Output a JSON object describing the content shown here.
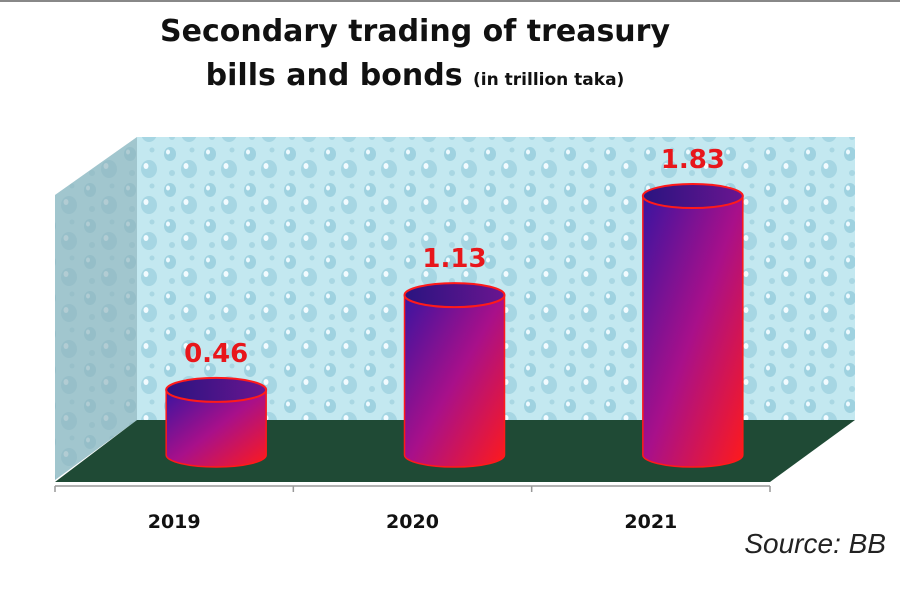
{
  "chart_data": {
    "type": "bar",
    "title_line1": "Secondary trading of treasury",
    "title_line2": "bills and bonds",
    "unit": "(in trillion taka)",
    "categories": [
      "2019",
      "2020",
      "2021"
    ],
    "values": [
      0.46,
      1.13,
      1.83
    ],
    "data_labels": [
      "0.46",
      "1.13",
      "1.83"
    ],
    "style": "3d-cylinder",
    "grid": false,
    "legend": "none",
    "colors": {
      "bar_top": "#3a1a8a",
      "bar_mid": "#a0108a",
      "bar_bottom": "#ff1020",
      "label": "#e8161b",
      "wall": "#bfe6ee",
      "floor": "#1f4a35"
    }
  },
  "source": "Source: BB"
}
